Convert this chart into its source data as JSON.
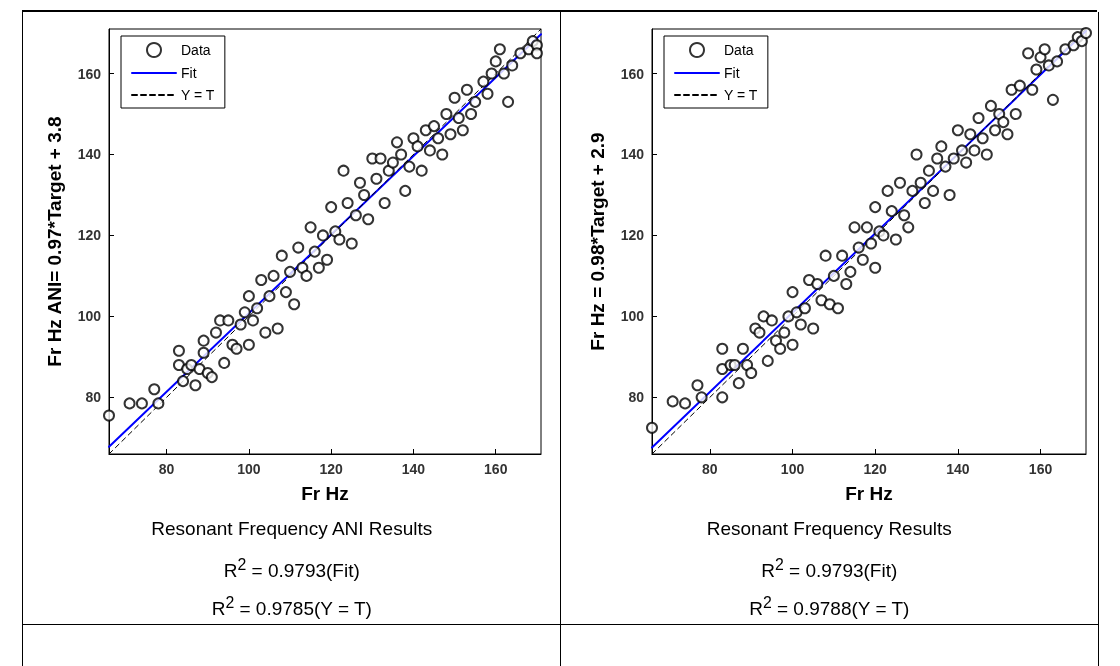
{
  "chart_data": [
    {
      "type": "scatter",
      "xlabel": "Fr Hz",
      "ylabel": "Fr Hz ANI= 0.97*Target + 3.8",
      "xlim": [
        66,
        171
      ],
      "ylim": [
        66,
        171
      ],
      "xticks": [
        80,
        100,
        120,
        140,
        160
      ],
      "yticks": [
        80,
        100,
        120,
        140,
        160
      ],
      "grid": false,
      "legend": "top left",
      "annotations": [
        "Resonant Frequency ANI Results",
        "R$^{2}$ = 0.9793(Fit)",
        "R$^{2}$ = 0.9785(Y = T)"
      ],
      "series": [
        {
          "name": "Data",
          "marker": "circle",
          "color": "#000000",
          "x": [
            66,
            71,
            74,
            77,
            78,
            83,
            83,
            84,
            85,
            86,
            87,
            88,
            89,
            89,
            90,
            91,
            92,
            93,
            94,
            95,
            96,
            97,
            98,
            99,
            100,
            100,
            101,
            102,
            103,
            104,
            105,
            106,
            107,
            108,
            109,
            110,
            111,
            112,
            113,
            114,
            115,
            116,
            117,
            118,
            119,
            120,
            121,
            122,
            123,
            124,
            125,
            126,
            127,
            128,
            129,
            130,
            131,
            132,
            133,
            134,
            135,
            136,
            137,
            138,
            139,
            140,
            141,
            142,
            143,
            144,
            145,
            146,
            147,
            148,
            149,
            150,
            151,
            152,
            153,
            154,
            155,
            157,
            158,
            159,
            160,
            161,
            162,
            163,
            164,
            166,
            168,
            169,
            170,
            170
          ],
          "values": [
            75.5,
            78.5,
            78.5,
            82,
            78.5,
            91.5,
            88,
            84,
            87,
            88,
            83,
            87,
            91,
            94,
            86,
            85,
            96,
            99,
            88.5,
            99,
            93,
            92,
            98,
            101,
            93,
            105,
            99,
            102,
            109,
            96,
            105,
            110,
            97,
            115,
            106,
            111,
            103,
            117,
            112,
            110,
            122,
            116,
            112,
            120,
            114,
            127,
            121,
            119,
            136,
            128,
            118,
            125,
            133,
            130,
            124,
            139,
            134,
            139,
            128,
            136,
            138,
            143,
            140,
            131,
            137,
            144,
            142,
            136,
            146,
            141,
            147,
            144,
            140,
            150,
            145,
            154,
            149,
            146,
            156,
            150,
            153,
            158,
            155,
            160,
            163,
            166,
            160,
            153,
            162,
            165,
            166,
            168,
            167,
            165
          ]
        },
        {
          "name": "Fit",
          "type": "line",
          "marker": "none",
          "line_style": "solid",
          "color": "#0000ff",
          "x": [
            66,
            171
          ],
          "values": [
            67.8,
            169.7
          ]
        },
        {
          "name": "Y = T",
          "type": "line",
          "marker": "none",
          "line_style": "dashed",
          "color": "#000000",
          "x": [
            66,
            171
          ],
          "values": [
            66,
            171
          ]
        }
      ]
    },
    {
      "type": "scatter",
      "xlabel": "Fr Hz",
      "ylabel": "Fr Hz = 0.98*Target + 2.9",
      "xlim": [
        66,
        171
      ],
      "ylim": [
        66,
        171
      ],
      "xticks": [
        80,
        100,
        120,
        140,
        160
      ],
      "yticks": [
        80,
        100,
        120,
        140,
        160
      ],
      "grid": false,
      "legend": "top left",
      "annotations": [
        "Resonant Frequency Results",
        "R$^{2}$ = 0.9793(Fit)",
        "R$^{2}$ = 0.9788(Y = T)"
      ],
      "series": [
        {
          "name": "Data",
          "marker": "circle",
          "color": "#000000",
          "x": [
            66,
            71,
            74,
            77,
            78,
            83,
            83,
            83,
            85,
            86,
            87,
            88,
            89,
            90,
            91,
            92,
            93,
            94,
            95,
            96,
            97,
            98,
            99,
            100,
            100,
            101,
            102,
            103,
            104,
            105,
            106,
            107,
            108,
            109,
            110,
            111,
            112,
            113,
            114,
            115,
            116,
            117,
            118,
            119,
            120,
            120,
            121,
            122,
            123,
            124,
            125,
            126,
            127,
            128,
            129,
            130,
            131,
            132,
            133,
            134,
            135,
            136,
            137,
            138,
            139,
            140,
            141,
            142,
            143,
            144,
            145,
            146,
            147,
            148,
            149,
            150,
            151,
            152,
            153,
            154,
            155,
            157,
            158,
            159,
            160,
            161,
            162,
            163,
            164,
            166,
            168,
            169,
            170,
            171
          ],
          "values": [
            72.5,
            79,
            78.5,
            83,
            80,
            92,
            87,
            80,
            88,
            88,
            83.5,
            92,
            88,
            86,
            97,
            96,
            100,
            89,
            99,
            94,
            92,
            96,
            100,
            93,
            106,
            101,
            98,
            102,
            109,
            97,
            108,
            104,
            115,
            103,
            110,
            102,
            115,
            108,
            111,
            122,
            117,
            114,
            122,
            118,
            112,
            127,
            121,
            120,
            131,
            126,
            119,
            133,
            125,
            122,
            131,
            140,
            133,
            128,
            136,
            131,
            139,
            142,
            137,
            130,
            139,
            146,
            141,
            138,
            145,
            141,
            149,
            144,
            140,
            152,
            146,
            150,
            148,
            145,
            156,
            150,
            157,
            165,
            156,
            161,
            164,
            166,
            162,
            153.5,
            163,
            166,
            167,
            169,
            168,
            170
          ]
        },
        {
          "name": "Fit",
          "type": "line",
          "marker": "none",
          "line_style": "solid",
          "color": "#0000ff",
          "x": [
            66,
            171
          ],
          "values": [
            67.6,
            170.5
          ]
        },
        {
          "name": "Y = T",
          "type": "line",
          "marker": "none",
          "line_style": "dashed",
          "color": "#000000",
          "x": [
            66,
            171
          ],
          "values": [
            66,
            171
          ]
        }
      ]
    }
  ]
}
